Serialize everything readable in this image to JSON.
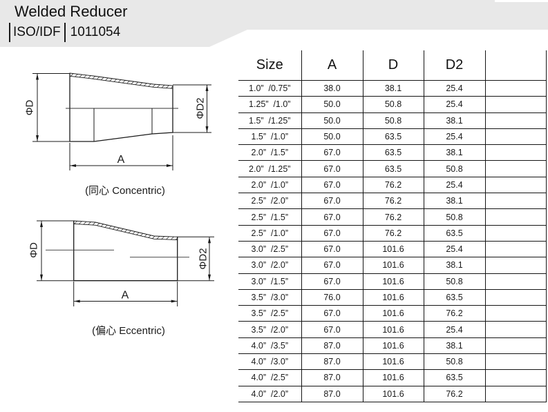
{
  "header": {
    "title": "Welded Reducer",
    "standard_label": "ISO/IDF",
    "standard_code": "1011054"
  },
  "diagrams": {
    "concentric": {
      "caption": "(同心 Concentric)",
      "dim_diameter_large": "ΦD",
      "dim_diameter_small": "ΦD2",
      "dim_length": "A"
    },
    "eccentric": {
      "caption": "(偏心 Eccentric)",
      "dim_diameter_large": "ΦD",
      "dim_diameter_small": "ΦD2",
      "dim_length": "A"
    }
  },
  "table": {
    "columns": [
      "Size",
      "A",
      "D",
      "D2",
      ""
    ],
    "rows": [
      [
        "1.0”  /0.75”",
        "38.0",
        "38.1",
        "25.4",
        ""
      ],
      [
        "1.25”  /1.0”",
        "50.0",
        "50.8",
        "25.4",
        ""
      ],
      [
        "1.5”  /1.25”",
        "50.0",
        "50.8",
        "38.1",
        ""
      ],
      [
        "1.5”  /1.0”",
        "50.0",
        "63.5",
        "25.4",
        ""
      ],
      [
        "2.0”  /1.5”",
        "67.0",
        "63.5",
        "38.1",
        ""
      ],
      [
        "2.0”  /1.25”",
        "67.0",
        "63.5",
        "50.8",
        ""
      ],
      [
        "2.0”  /1.0”",
        "67.0",
        "76.2",
        "25.4",
        ""
      ],
      [
        "2.5”  /2.0”",
        "67.0",
        "76.2",
        "38.1",
        ""
      ],
      [
        "2.5”  /1.5”",
        "67.0",
        "76.2",
        "50.8",
        ""
      ],
      [
        "2.5”  /1.0”",
        "67.0",
        "76.2",
        "63.5",
        ""
      ],
      [
        "3.0”  /2.5”",
        "67.0",
        "101.6",
        "25.4",
        ""
      ],
      [
        "3.0”  /2.0”",
        "67.0",
        "101.6",
        "38.1",
        ""
      ],
      [
        "3.0”  /1.5”",
        "67.0",
        "101.6",
        "50.8",
        ""
      ],
      [
        "3.5”  /3.0”",
        "76.0",
        "101.6",
        "63.5",
        ""
      ],
      [
        "3.5”  /2.5”",
        "67.0",
        "101.6",
        "76.2",
        ""
      ],
      [
        "3.5”  /2.0”",
        "67.0",
        "101.6",
        "25.4",
        ""
      ],
      [
        "4.0”  /3.5”",
        "87.0",
        "101.6",
        "38.1",
        ""
      ],
      [
        "4.0”  /3.0”",
        "87.0",
        "101.6",
        "50.8",
        ""
      ],
      [
        "4.0”  /2.5”",
        "87.0",
        "101.6",
        "63.5",
        ""
      ],
      [
        "4.0”  /2.0”",
        "87.0",
        "101.6",
        "76.2",
        ""
      ]
    ]
  },
  "colors": {
    "band_gray": "#e8e8e8",
    "line_black": "#141414"
  }
}
